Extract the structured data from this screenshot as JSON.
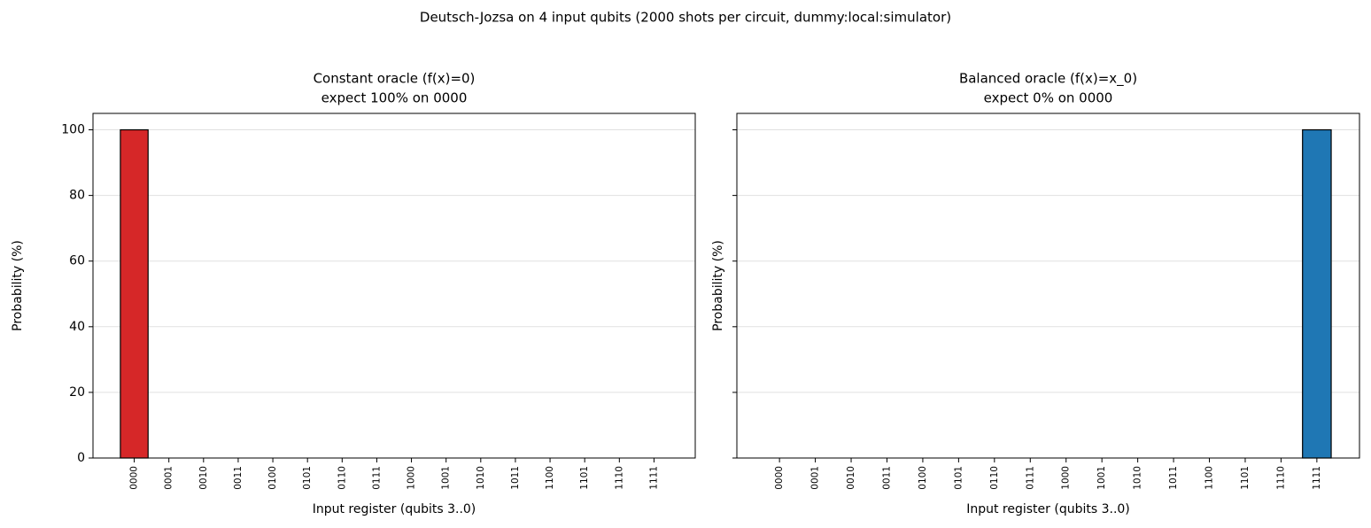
{
  "title": "Deutsch-Jozsa on 4 input qubits (2000 shots per circuit, dummy:local:simulator)",
  "chart_data": [
    {
      "type": "bar",
      "title": "Constant oracle  (f(x)=0)",
      "subtitle": "expect 100% on 0000",
      "x_label": "Input register (qubits 3..0)",
      "y_label": "Probability (%)",
      "categories": [
        "0000",
        "0001",
        "0010",
        "0011",
        "0100",
        "0101",
        "0110",
        "0111",
        "1000",
        "1001",
        "1010",
        "1011",
        "1100",
        "1101",
        "1110",
        "1111"
      ],
      "values": [
        100,
        0,
        0,
        0,
        0,
        0,
        0,
        0,
        0,
        0,
        0,
        0,
        0,
        0,
        0,
        0
      ],
      "color": "#d62728",
      "ylim": [
        0,
        105
      ],
      "yticks": [
        0,
        20,
        40,
        60,
        80,
        100
      ],
      "grid": true,
      "ytick_labels": true
    },
    {
      "type": "bar",
      "title": "Balanced oracle  (f(x)=x_0)",
      "subtitle": "expect 0% on 0000",
      "x_label": "Input register (qubits 3..0)",
      "y_label": "Probability (%)",
      "categories": [
        "0000",
        "0001",
        "0010",
        "0011",
        "0100",
        "0101",
        "0110",
        "0111",
        "1000",
        "1001",
        "1010",
        "1011",
        "1100",
        "1101",
        "1110",
        "1111"
      ],
      "values": [
        0,
        0,
        0,
        0,
        0,
        0,
        0,
        0,
        0,
        0,
        0,
        0,
        0,
        0,
        0,
        100
      ],
      "color": "#1f77b4",
      "ylim": [
        0,
        105
      ],
      "yticks": [
        0,
        20,
        40,
        60,
        80,
        100
      ],
      "grid": true,
      "ytick_labels": false
    }
  ]
}
